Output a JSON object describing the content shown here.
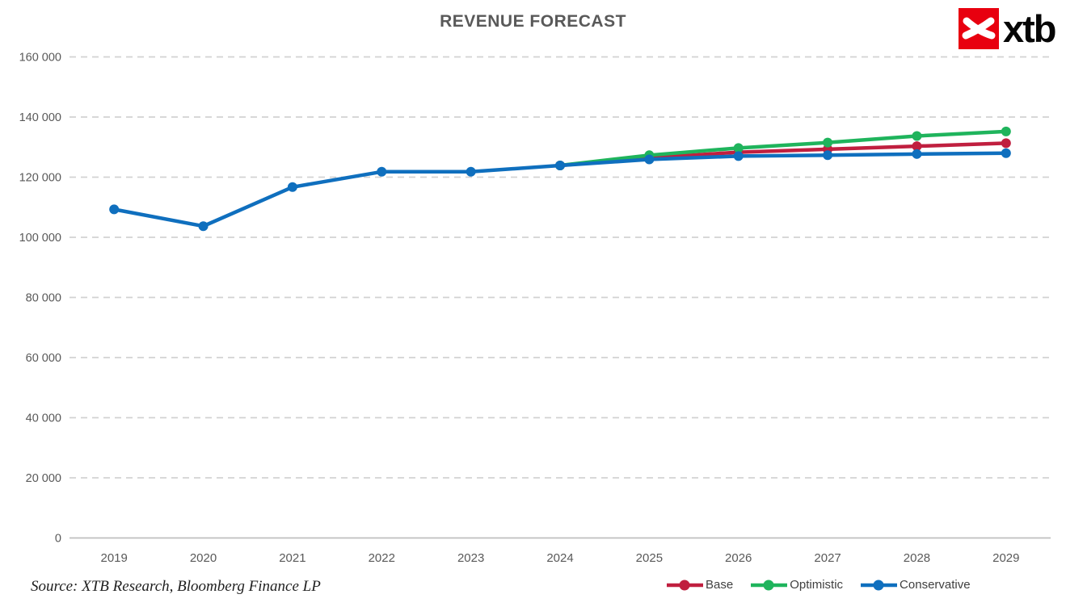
{
  "logo": {
    "text": "xtb",
    "mark_color": "#e8000f",
    "mark_icon": "xtb-bird"
  },
  "source_note": "Source: XTB Research, Bloomberg Finance LP",
  "chart_data": {
    "type": "line",
    "title": "REVENUE FORECAST",
    "categories": [
      "2019",
      "2020",
      "2021",
      "2022",
      "2023",
      "2024",
      "2025",
      "2026",
      "2027",
      "2028",
      "2029"
    ],
    "xlabel": "",
    "ylabel": "",
    "ylim": [
      0,
      160000
    ],
    "grid": "horizontal-dashed",
    "legend_position": "bottom-right",
    "y_ticks": {
      "values": [
        0,
        20000,
        40000,
        60000,
        80000,
        100000,
        120000,
        140000,
        160000
      ],
      "labels": [
        "0",
        "20 000",
        "40 000",
        "60 000",
        "80 000",
        "100 000",
        "120 000",
        "140 000",
        "160 000"
      ]
    },
    "series": [
      {
        "name": "Base",
        "color": "#c01f3f",
        "start_category": "2024",
        "values": [
          123900,
          126400,
          128300,
          129300,
          130300,
          131300
        ]
      },
      {
        "name": "Optimistic",
        "color": "#1fb45c",
        "start_category": "2024",
        "values": [
          123900,
          127300,
          129700,
          131500,
          133700,
          135200
        ]
      },
      {
        "name": "Conservative",
        "color": "#0f6fbe",
        "start_category": "2019",
        "values": [
          109300,
          103700,
          116700,
          121800,
          121800,
          123900,
          125900,
          127000,
          127300,
          127700,
          128000
        ]
      }
    ]
  },
  "style": {
    "gridline_color": "#d2d2d2",
    "axis_color": "#bfbfbf",
    "text_color": "#595959"
  }
}
